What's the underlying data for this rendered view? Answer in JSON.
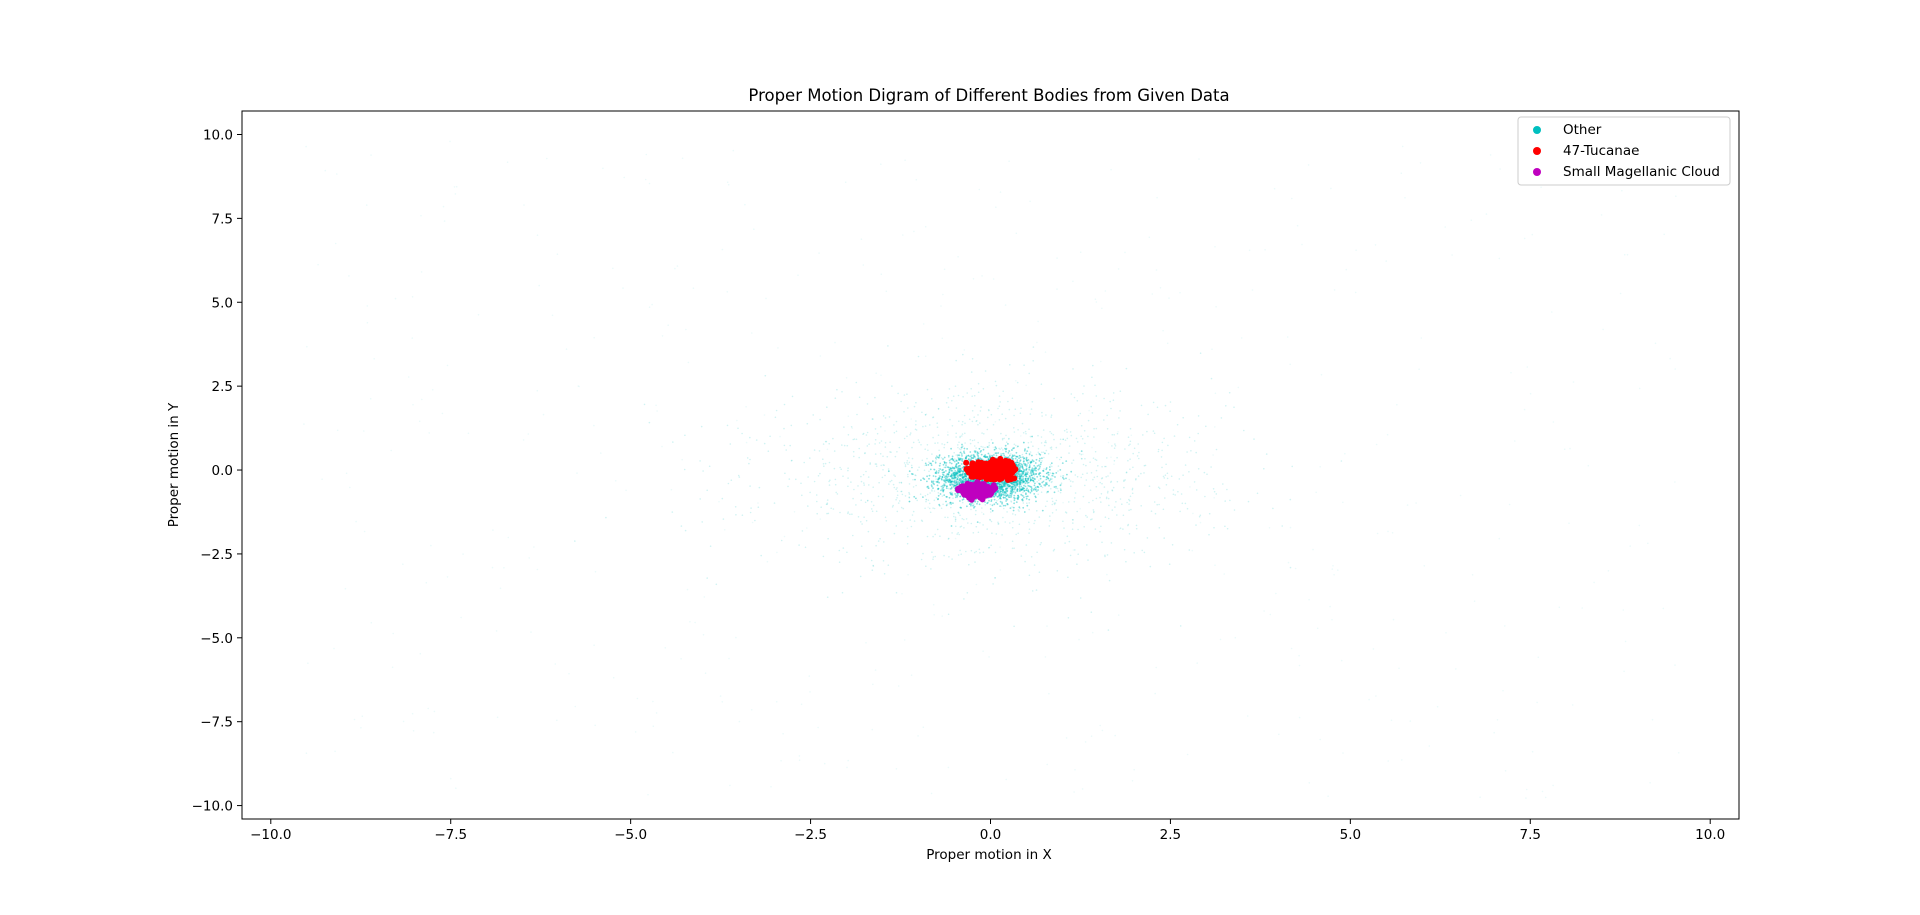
{
  "chart_data": {
    "type": "scatter",
    "title": "Proper Motion Digram of Different Bodies from Given Data",
    "xlabel": "Proper motion in X",
    "ylabel": "Proper motion in Y",
    "xlim": [
      -10.4,
      10.4
    ],
    "ylim": [
      -10.4,
      10.7
    ],
    "xticks": [
      -10.0,
      -7.5,
      -5.0,
      -2.5,
      0.0,
      2.5,
      5.0,
      7.5,
      10.0
    ],
    "yticks": [
      -10.0,
      -7.5,
      -5.0,
      -2.5,
      0.0,
      2.5,
      5.0,
      7.5,
      10.0
    ],
    "xtick_labels": [
      "−10.0",
      "−7.5",
      "−5.0",
      "−2.5",
      "0.0",
      "2.5",
      "5.0",
      "7.5",
      "10.0"
    ],
    "ytick_labels": [
      "−10.0",
      "−7.5",
      "−5.0",
      "−2.5",
      "0.0",
      "2.5",
      "5.0",
      "7.5",
      "10.0"
    ],
    "grid": false,
    "legend_position": "top-right",
    "series": [
      {
        "name": "Other",
        "color": "#00bfbf",
        "center": [
          0.0,
          -0.2
        ],
        "spread": [
          0.35,
          0.35
        ]
      },
      {
        "name": "47-Tucanae",
        "color": "#ff0000",
        "center": [
          0.05,
          0.0
        ],
        "spread": [
          0.12,
          0.1
        ]
      },
      {
        "name": "Small Magellanic Cloud",
        "color": "#bf00bf",
        "center": [
          -0.2,
          -0.6
        ],
        "spread": [
          0.09,
          0.08
        ]
      }
    ]
  }
}
